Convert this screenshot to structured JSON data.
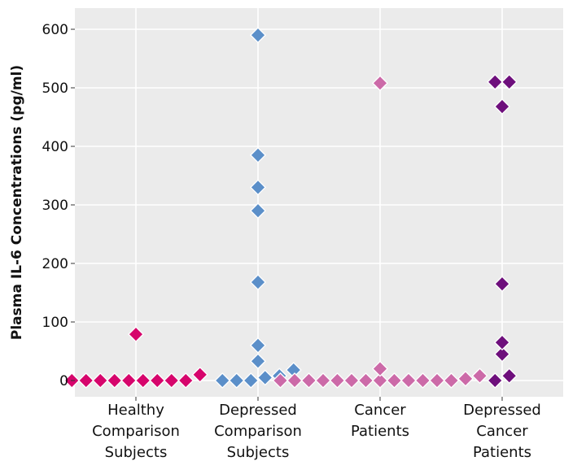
{
  "chart_data": {
    "type": "scatter",
    "ylabel": "Plasma IL-6 Concentrations (pg/ml)",
    "ylim": [
      -20,
      640
    ],
    "yticks": [
      0,
      100,
      200,
      300,
      400,
      500,
      600
    ],
    "grid": true,
    "legend": "none",
    "panel_color": "#ebebeb",
    "grid_color": "#ffffff",
    "categories": [
      {
        "lines": [
          "Healthy",
          "Comparison",
          "Subjects"
        ],
        "color": "#d6056c"
      },
      {
        "lines": [
          "Depressed",
          "Comparison",
          "Subjects"
        ],
        "color": "#5b8fc9"
      },
      {
        "lines": [
          "Cancer",
          "Patients"
        ],
        "color": "#cc6aa8"
      },
      {
        "lines": [
          "Depressed",
          "Cancer",
          "Patients"
        ],
        "color": "#6e0f7c"
      }
    ],
    "series": [
      {
        "values": [
          0,
          0,
          0,
          0,
          0,
          0,
          0,
          0,
          0,
          10,
          79
        ]
      },
      {
        "values": [
          0,
          0,
          0,
          5,
          8,
          18,
          33,
          60,
          168,
          290,
          330,
          385,
          590
        ]
      },
      {
        "values": [
          0,
          0,
          0,
          0,
          0,
          0,
          0,
          0,
          0,
          0,
          0,
          0,
          0,
          3,
          8,
          20,
          508
        ]
      },
      {
        "values": [
          0,
          8,
          45,
          65,
          165,
          468,
          510,
          510
        ]
      }
    ]
  }
}
